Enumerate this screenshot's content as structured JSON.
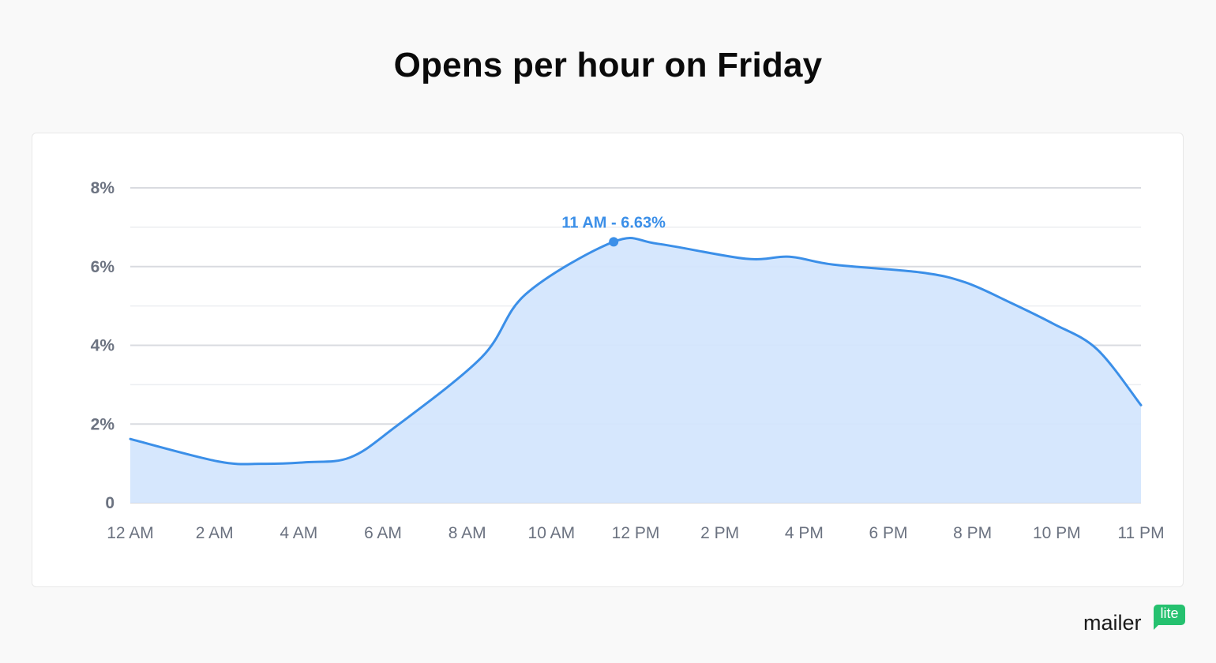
{
  "title": "Opens per hour on Friday",
  "brand": {
    "word": "mailer",
    "badge": "lite",
    "badge_color": "#25c16f"
  },
  "chart_data": {
    "type": "area",
    "title": "Opens per hour on Friday",
    "xlabel": "",
    "ylabel": "",
    "x_ticks": [
      "12 AM",
      "2 AM",
      "4 AM",
      "6 AM",
      "8 AM",
      "10 AM",
      "12 PM",
      "2 PM",
      "4 PM",
      "6 PM",
      "8 PM",
      "10 PM",
      "11 PM"
    ],
    "y_ticks": [
      "0",
      "2%",
      "4%",
      "6%",
      "8%"
    ],
    "ylim": [
      0,
      8
    ],
    "grid": true,
    "color": "#3b8fe8",
    "fill_color": "#d4e6fd",
    "series": [
      {
        "values": [
          1.62,
          1.05,
          0.99,
          1.03,
          1.15,
          1.9,
          3.7,
          5.3,
          6.63,
          6.58,
          6.2,
          6.25,
          6.05,
          5.85,
          5.6,
          5.1,
          4.55,
          3.9,
          2.48
        ]
      }
    ],
    "x_positions": [
      0,
      2,
      3,
      4,
      5,
      6,
      8,
      9,
      11,
      12,
      14,
      15,
      16,
      18,
      19,
      20,
      21,
      22,
      23
    ],
    "annotation": {
      "label": "11 AM - 6.63%",
      "x": 11,
      "y": 6.63
    }
  }
}
